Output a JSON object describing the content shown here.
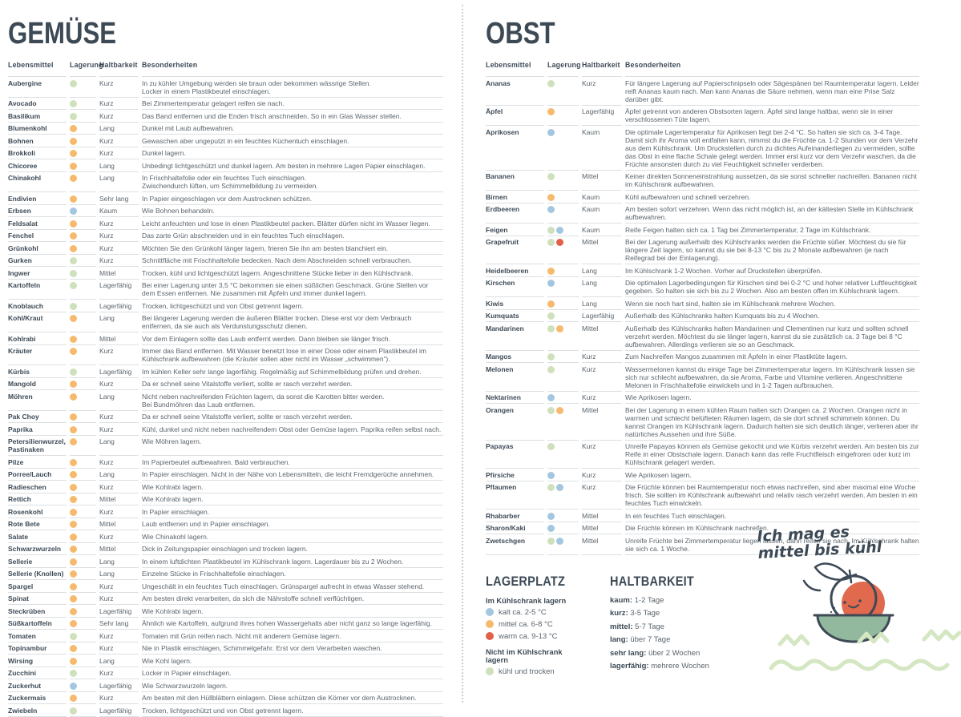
{
  "colors": {
    "green": "#cfe0bc",
    "orange": "#f6ba6e",
    "blue": "#a3c7e0",
    "red": "#e2604a",
    "ink": "#3d4a56",
    "body_text": "#5b656d",
    "row_border": "#dcdfe1",
    "bowl_green": "#92b89d",
    "fruit_orange": "#e0694e",
    "squiggle_green": "#d4e7c2"
  },
  "left": {
    "title": "GEMÜSE",
    "columns": {
      "food": "Lebensmittel",
      "storage": "Lagerung",
      "shelf": "Haltbarkeit",
      "notes": "Besonderheiten"
    },
    "rows": [
      [
        "Aubergine",
        [
          "green"
        ],
        "Kurz",
        "In zu kühler Umgebung werden sie braun oder bekommen wässrige Stellen.\nLocker in einem Plastikbeutel einschlagen."
      ],
      [
        "Avocado",
        [
          "green"
        ],
        "Kurz",
        "Bei Zimmertemperatur gelagert reifen sie nach."
      ],
      [
        "Basilikum",
        [
          "green"
        ],
        "Kurz",
        "Das Band entfernen und die Enden frisch anschneiden. So in ein Glas Wasser stellen."
      ],
      [
        "Blumenkohl",
        [
          "orange"
        ],
        "Lang",
        "Dunkel mit Laub aufbewahren."
      ],
      [
        "Bohnen",
        [
          "orange"
        ],
        "Kurz",
        "Gewaschen aber ungeputzt in ein feuchtes Küchentuch einschlagen."
      ],
      [
        "Brokkoli",
        [
          "orange"
        ],
        "Kurz",
        "Dunkel lagern."
      ],
      [
        "Chicoree",
        [
          "orange"
        ],
        "Lang",
        "Unbedingt lichtgeschützt und dunkel lagern. Am besten in mehrere Lagen Papier einschlagen."
      ],
      [
        "Chinakohl",
        [
          "orange"
        ],
        "Lang",
        "In Frischhaltefolie oder ein feuchtes Tuch einschlagen.\nZwischendurch lüften, um Schimmelbildung zu vermeiden."
      ],
      [
        "Endivien",
        [
          "orange"
        ],
        "Sehr lang",
        "In Papier eingeschlagen vor dem Austrocknen schützen."
      ],
      [
        "Erbsen",
        [
          "blue"
        ],
        "Kaum",
        "Wie Bohnen behandeln."
      ],
      [
        "Feldsalat",
        [
          "orange"
        ],
        "Kurz",
        "Leicht anfeuchten und lose in einen Plastikbeutel packen. Blätter dürfen nicht im Wasser liegen."
      ],
      [
        "Fenchel",
        [
          "orange"
        ],
        "Kurz",
        "Das zarte Grün abschneiden und in ein feuchtes Tuch einschlagen."
      ],
      [
        "Grünkohl",
        [
          "orange"
        ],
        "Kurz",
        "Möchten Sie den Grünkohl länger lagern, frieren Sie ihn am besten blanchiert ein."
      ],
      [
        "Gurken",
        [
          "green"
        ],
        "Kurz",
        "Schnittfläche mit Frischhaltefolie bedecken. Nach dem Abschneiden schnell verbrauchen."
      ],
      [
        "Ingwer",
        [
          "green"
        ],
        "Mittel",
        "Trocken, kühl und lichtgeschützt lagern. Angeschnittene Stücke lieber in den Kühlschrank."
      ],
      [
        "Kartoffeln",
        [
          "green"
        ],
        "Lagerfähig",
        "Bei einer Lagerung unter 3,5 °C bekommen sie einen süßlichen Geschmack. Grüne Stellen vor dem Essen entfernen. Nie zusammen mit Äpfeln und immer dunkel lagern."
      ],
      [
        "Knoblauch",
        [
          "green"
        ],
        "Lagerfähig",
        "Trocken, lichtgeschützt und von Obst getrennt lagern."
      ],
      [
        "Kohl/Kraut",
        [
          "orange"
        ],
        "Lang",
        "Bei längerer Lagerung werden die äußeren Blätter trocken. Diese erst vor dem Verbrauch entfernen, da sie auch als Verdunstungsschutz dienen."
      ],
      [
        "Kohlrabi",
        [
          "orange"
        ],
        "Mittel",
        "Vor dem Einlagern sollte das Laub entfernt werden. Dann bleiben sie länger frisch."
      ],
      [
        "Kräuter",
        [
          "orange"
        ],
        "Kurz",
        "Immer das Band entfernen. Mit Wasser benetzt lose in einer Dose oder einem Plastikbeutel im Kühlschrank aufbewahren (die Kräuter sollen aber nicht im Wasser „schwimmen“)."
      ],
      [
        "Kürbis",
        [
          "green"
        ],
        "Lagerfähig",
        "Im kühlen Keller sehr lange lagerfähig. Regelmäßig auf Schimmelbildung prüfen und drehen."
      ],
      [
        "Mangold",
        [
          "orange"
        ],
        "Kurz",
        "Da er schnell seine Vitalstoffe verliert, sollte er rasch verzehrt werden."
      ],
      [
        "Möhren",
        [
          "orange"
        ],
        "Lang",
        "Nicht neben nachreifenden Früchten lagern, da sonst die Karotten bitter werden.\nBei Bundmöhren das Laub entfernen."
      ],
      [
        "Pak Choy",
        [
          "orange"
        ],
        "Kurz",
        "Da er schnell seine Vitalstoffe verliert, sollte er rasch verzehrt werden."
      ],
      [
        "Paprika",
        [
          "orange"
        ],
        "Kurz",
        "Kühl, dunkel und nicht neben nachreifendem Obst oder Gemüse lagern. Paprika reifen selbst nach."
      ],
      [
        "Petersilienwurzel, Pastinaken",
        [
          "orange"
        ],
        "Lang",
        "Wie Möhren lagern."
      ],
      [
        "Pilze",
        [
          "orange"
        ],
        "Kurz",
        "Im Papierbeutel aufbewahren. Bald verbrauchen."
      ],
      [
        "Porree/Lauch",
        [
          "orange"
        ],
        "Lang",
        "In Papier einschlagen. Nicht in der Nähe von Lebensmitteln, die leicht Fremdgerüche annehmen."
      ],
      [
        "Radieschen",
        [
          "orange"
        ],
        "Kurz",
        "Wie Kohlrabi lagern."
      ],
      [
        "Rettich",
        [
          "orange"
        ],
        "Mittel",
        "Wie Kohlrabi lagern."
      ],
      [
        "Rosenkohl",
        [
          "orange"
        ],
        "Kurz",
        "In Papier einschlagen."
      ],
      [
        "Rote Bete",
        [
          "orange"
        ],
        "Mittel",
        "Laub entfernen und in Papier einschlagen."
      ],
      [
        "Salate",
        [
          "orange"
        ],
        "Kurz",
        "Wie Chinakohl lagern."
      ],
      [
        "Schwarzwurzeln",
        [
          "orange"
        ],
        "Mittel",
        "Dick in Zeitungspapier einschlagen und trocken lagern."
      ],
      [
        "Sellerie",
        [
          "orange"
        ],
        "Lang",
        "In einem luftdichten Plastikbeutel im Kühlschrank lagern. Lagerdauer bis zu 2 Wochen."
      ],
      [
        "Sellerie (Knollen)",
        [
          "orange"
        ],
        "Lang",
        "Einzelne Stücke in Frischhaltefolie einschlagen."
      ],
      [
        "Spargel",
        [
          "orange"
        ],
        "Kurz",
        "Ungeschält in ein feuchtes Tuch einschlagen. Grünspargel aufrecht in etwas Wasser stehend."
      ],
      [
        "Spinat",
        [
          "orange"
        ],
        "Kurz",
        "Am besten direkt verarbeiten, da sich die Nährstoffe schnell verflüchtigen."
      ],
      [
        "Steckrüben",
        [
          "orange"
        ],
        "Lagerfähig",
        "Wie Kohlrabi lagern."
      ],
      [
        "Süßkartoffeln",
        [
          "orange"
        ],
        "Sehr lang",
        "Ähnlich wie Kartoffeln, aufgrund ihres hohen Wassergehalts aber nicht ganz so lange lagerfähig."
      ],
      [
        "Tomaten",
        [
          "green"
        ],
        "Kurz",
        "Tomaten mit Grün reifen nach. Nicht mit anderem Gemüse lagern."
      ],
      [
        "Topinambur",
        [
          "orange"
        ],
        "Kurz",
        "Nie in Plastik einschlagen, Schimmelgefahr. Erst vor dem Verarbeiten waschen."
      ],
      [
        "Wirsing",
        [
          "orange"
        ],
        "Lang",
        "Wie Kohl lagern."
      ],
      [
        "Zucchini",
        [
          "green"
        ],
        "Kurz",
        "Locker in Papier einschlagen."
      ],
      [
        "Zuckerhut",
        [
          "blue"
        ],
        "Lagerfähig",
        "Wie Schwarzwurzeln lagern."
      ],
      [
        "Zuckermais",
        [
          "orange"
        ],
        "Kurz",
        "Am besten mit den Hüllblättern einlagern. Diese schützen die Körner vor dem Austrocknen."
      ],
      [
        "Zwiebeln",
        [
          "green"
        ],
        "Lagerfähig",
        "Trocken, lichtgeschützt und von Obst getrennt lagern."
      ]
    ]
  },
  "right": {
    "title": "OBST",
    "columns": {
      "food": "Lebensmittel",
      "storage": "Lagerung",
      "shelf": "Haltbarkeit",
      "notes": "Besonderheiten"
    },
    "rows": [
      [
        "Ananas",
        [
          "green"
        ],
        "Kurz",
        "Für längere Lagerung auf Papierschnipseln oder Sägespänen bei Raumtemperatur lagern. Leider reift Ananas kaum nach. Man kann Ananas die Säure nehmen, wenn man eine Prise Salz darüber gibt."
      ],
      [
        "Äpfel",
        [
          "orange"
        ],
        "Lagerfähig",
        "Äpfel getrennt von anderen Obstsorten lagern. Äpfel sind lange haltbar, wenn sie in einer verschlossenen Tüte lagern."
      ],
      [
        "Aprikosen",
        [
          "blue"
        ],
        "Kaum",
        "Die optimale Lagertemperatur für Aprikosen liegt bei 2-4 °C. So halten sie sich ca. 3-4 Tage. Damit sich ihr Aroma voll entfalten kann, nimmst du die Früchte ca. 1-2 Stunden vor dem Verzehr aus dem Kühlschrank. Um Druckstellen durch zu dichtes Aufeinanderliegen zu vermeiden, sollte das Obst in eine flache Schale gelegt werden. Immer erst kurz vor dem Verzehr waschen, da die Früchte ansonsten durch zu viel Feuchtigkeit schneller verderben."
      ],
      [
        "Bananen",
        [
          "green"
        ],
        "Mittel",
        "Keiner direkten Sonneneinstrahlung aussetzen, da sie sonst schneller nachreifen. Bananen nicht im Kühlschrank aufbewahren."
      ],
      [
        "Birnen",
        [
          "orange"
        ],
        "Kaum",
        "Kühl aufbewahren und schnell verzehren."
      ],
      [
        "Erdbeeren",
        [
          "blue"
        ],
        "Kaum",
        "Am besten sofort verzehren. Wenn das nicht möglich ist, an der kältesten Stelle im Kühlschrank aufbewahren."
      ],
      [
        "Feigen",
        [
          "green",
          "blue"
        ],
        "Kaum",
        "Reife Feigen halten sich ca. 1 Tag bei Zimmertemperatur, 2 Tage im Kühlschrank."
      ],
      [
        "Grapefruit",
        [
          "green",
          "red"
        ],
        "Mittel",
        "Bei der Lagerung außerhalb des Kühlschranks werden die Früchte süßer. Möchtest du sie für längere Zeit lagern, so kannst du sie bei 8-13 °C bis zu 2 Monate aufbewahren (je nach Reifegrad bei der Einlagerung)."
      ],
      [
        "Heidelbeeren",
        [
          "orange"
        ],
        "Lang",
        "Im Kühlschrank 1-2 Wochen. Vorher auf Druckstellen überprüfen."
      ],
      [
        "Kirschen",
        [
          "blue"
        ],
        "Lang",
        "Die optimalen Lagerbedingungen für Kirschen sind bei 0-2 °C und hoher relativer Luftfeuchtigkeit gegeben. So halten sie sich bis zu 2 Wochen. Also am besten offen im Kühlschrank lagern."
      ],
      [
        "Kiwis",
        [
          "orange"
        ],
        "Lang",
        "Wenn sie noch hart sind, halten sie im Kühlschrank mehrere Wochen."
      ],
      [
        "Kumquats",
        [
          "green"
        ],
        "Lagerfähig",
        "Außerhalb des Kühlschranks halten Kumquats bis zu 4 Wochen."
      ],
      [
        "Mandarinen",
        [
          "green",
          "orange"
        ],
        "Mittel",
        "Außerhalb des Kühlschranks halten Mandarinen und Clementinen nur kurz und sollten schnell verzehrt werden. Möchtest du sie länger lagern, kannst du sie zusätzlich ca. 3 Tage bei 8 °C aufbewahren. Allerdings verlieren sie so an Geschmack."
      ],
      [
        "Mangos",
        [
          "green"
        ],
        "Kurz",
        "Zum Nachreifen Mangos zusammen mit Äpfeln in einer Plastiktüte lagern."
      ],
      [
        "Melonen",
        [
          "green"
        ],
        "Kurz",
        "Wassermelonen kannst du einige Tage bei Zimmertemperatur lagern. Im Kühlschrank lassen sie sich nur schlecht aufbewahren, da sie Aroma, Farbe und Vitamine verlieren. Angeschnittene Melonen in Frischhaltefolie einwickeln und in 1-2 Tagen aufbrauchen."
      ],
      [
        "Nektarinen",
        [
          "blue"
        ],
        "Kurz",
        "Wie Aprikosen lagern."
      ],
      [
        "Orangen",
        [
          "green",
          "orange"
        ],
        "Mittel",
        "Bei der Lagerung in einem kühlen Raum halten sich Orangen ca. 2 Wochen. Orangen nicht in warmen und schlecht belüfteten Räumen lagern, da sie dort schnell schimmeln können. Du kannst Orangen im Kühlschrank lagern. Dadurch halten sie sich deutlich länger, verlieren aber ihr natürliches Aussehen und ihre Süße."
      ],
      [
        "Papayas",
        [
          "green"
        ],
        "Kurz",
        "Unreife Papayas können als Gemüse gekocht und wie Kürbis verzehrt werden. Am besten bis zur Reife in einer Obstschale lagern. Danach kann das reife Fruchtfleisch eingefroren oder kurz im Kühlschrank gelagert werden."
      ],
      [
        "Pfirsiche",
        [
          "blue"
        ],
        "Kurz",
        "Wie Aprikosen lagern."
      ],
      [
        "Pflaumen",
        [
          "green",
          "blue"
        ],
        "Kurz",
        "Die Früchte können bei Raumtemperatur noch etwas nachreifen, sind aber maximal eine Woche frisch. Sie sollten im Kühlschrank aufbewahrt und relativ rasch verzehrt werden. Am besten in ein feuchtes Tuch einwickeln."
      ],
      [
        "Rhabarber",
        [
          "blue"
        ],
        "Mittel",
        "In ein feuchtes Tuch einschlagen."
      ],
      [
        "Sharon/Kaki",
        [
          "blue"
        ],
        "Mittel",
        "Die Früchte können im Kühlschrank nachreifen."
      ],
      [
        "Zwetschgen",
        [
          "green",
          "blue"
        ],
        "Mittel",
        "Unreife Früchte bei Zimmertemperatur liegen lassen, dann reifen sie nach. Im Kühlschrank halten sie sich ca. 1 Woche."
      ]
    ],
    "legend": {
      "lagerplatz": {
        "title": "LAGERPLATZ",
        "groups": [
          {
            "heading": "Im Kühlschrank lagern",
            "items": [
              {
                "color": "blue",
                "label": "kalt ca. 2-5 °C"
              },
              {
                "color": "orange",
                "label": "mittel ca. 6-8 °C"
              },
              {
                "color": "red",
                "label": "warm ca. 9-13 °C"
              }
            ]
          },
          {
            "heading": "Nicht im Kühlschrank lagern",
            "items": [
              {
                "color": "green",
                "label": "kühl und trocken"
              }
            ]
          }
        ]
      },
      "haltbarkeit": {
        "title": "HALTBARKEIT",
        "items": [
          {
            "term": "kaum:",
            "value": "1-2 Tage"
          },
          {
            "term": "kurz:",
            "value": "3-5 Tage"
          },
          {
            "term": "mittel:",
            "value": "5-7 Tage"
          },
          {
            "term": "lang:",
            "value": "über 7 Tage"
          },
          {
            "term": "sehr lang:",
            "value": "über 2 Wochen"
          },
          {
            "term": "lagerfähig:",
            "value": "mehrere Wochen"
          }
        ]
      }
    },
    "sticker": {
      "line1": "Ich mag es",
      "line2": "mittel bis kühl"
    }
  }
}
